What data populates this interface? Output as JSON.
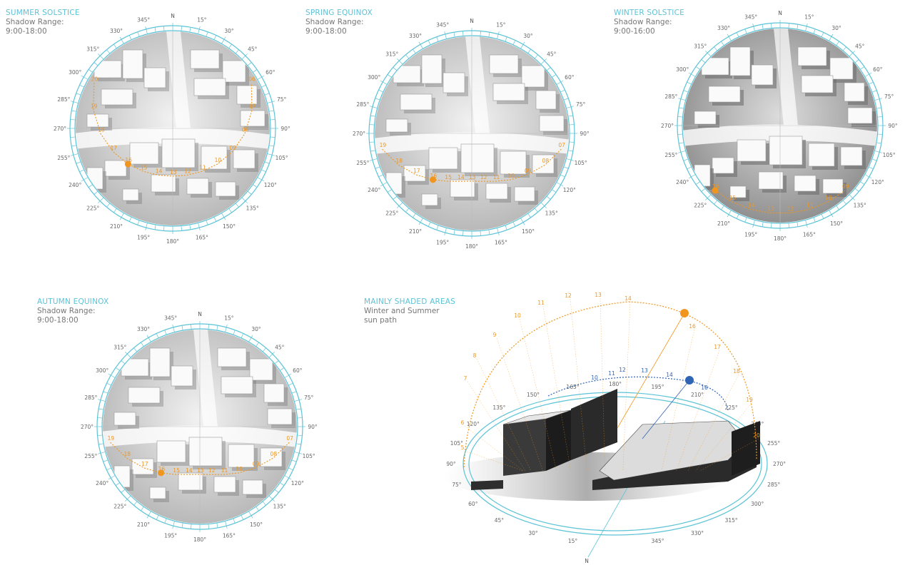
{
  "colors": {
    "accent": "#5cc3d6",
    "sun_path": "#f0961e",
    "winter_path": "#2f63b4",
    "caption_title": "#5cc3d6",
    "caption_text": "#777777"
  },
  "compass": {
    "north_label": "N",
    "degree_labels": [
      "15°",
      "30°",
      "45°",
      "60°",
      "75°",
      "90°",
      "105°",
      "120°",
      "135°",
      "150°",
      "165°",
      "180°",
      "195°",
      "210°",
      "225°",
      "240°",
      "255°",
      "270°",
      "285°",
      "300°",
      "315°",
      "330°",
      "345°"
    ]
  },
  "panels": [
    {
      "id": "summer-solstice",
      "title": "SUMMER SOLSTICE",
      "shadow_label": "Shadow Range:",
      "time_range": "9:00-18:00",
      "hour_labels": [
        "06",
        "07",
        "08",
        "09",
        "10",
        "11",
        "12",
        "13",
        "14",
        "15",
        "16",
        "17",
        "18",
        "19",
        "20"
      ],
      "sun_marker_hour": 16
    },
    {
      "id": "spring-equinox",
      "title": "SPRING EQUINOX",
      "shadow_label": "Shadow Range:",
      "time_range": "9:00-18:00",
      "hour_labels": [
        "07",
        "08",
        "09",
        "10",
        "11",
        "12",
        "13",
        "14",
        "15",
        "16",
        "17",
        "18",
        "19"
      ],
      "sun_marker_hour": 16
    },
    {
      "id": "winter-solstice",
      "title": "WINTER SOLSTICE",
      "shadow_label": "Shadow Range:",
      "time_range": "9:00-16:00",
      "hour_labels": [
        "09",
        "10",
        "11",
        "12",
        "13",
        "14",
        "15",
        "16"
      ],
      "sun_marker_hour": 16
    },
    {
      "id": "autumn-equinox",
      "title": "AUTUMN EQUINOX",
      "shadow_label": "Shadow Range:",
      "time_range": "9:00-18:00",
      "hour_labels": [
        "07",
        "08",
        "09",
        "10",
        "11",
        "12",
        "13",
        "14",
        "15",
        "16",
        "17",
        "18",
        "19"
      ],
      "sun_marker_hour": 16
    }
  ],
  "shaded_areas": {
    "title": "MAINLY SHADED AREAS",
    "subtitle_line1": "Winter and Summer",
    "subtitle_line2": "sun path",
    "summer_hours": [
      "5",
      "6",
      "7",
      "8",
      "9",
      "10",
      "11",
      "12",
      "13",
      "14",
      "16",
      "17",
      "18",
      "19",
      "20"
    ],
    "winter_hours": [
      "10",
      "11",
      "12",
      "13",
      "14",
      "16"
    ],
    "ring_labels": [
      "15°",
      "30°",
      "45°",
      "60°",
      "75°",
      "90°",
      "105°",
      "120°",
      "135°",
      "150°",
      "165°",
      "180°",
      "195°",
      "210°",
      "225°",
      "240°",
      "255°",
      "270°",
      "285°",
      "300°",
      "315°",
      "330°",
      "345°"
    ],
    "north_label": "N"
  }
}
